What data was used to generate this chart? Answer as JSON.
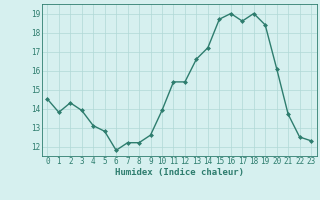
{
  "xlabel": "Humidex (Indice chaleur)",
  "ylabel": "",
  "x": [
    0,
    1,
    2,
    3,
    4,
    5,
    6,
    7,
    8,
    9,
    10,
    11,
    12,
    13,
    14,
    15,
    16,
    17,
    18,
    19,
    20,
    21,
    22,
    23
  ],
  "y": [
    14.5,
    13.8,
    14.3,
    13.9,
    13.1,
    12.8,
    11.8,
    12.2,
    12.2,
    12.6,
    13.9,
    15.4,
    15.4,
    16.6,
    17.2,
    18.7,
    19.0,
    18.6,
    19.0,
    18.4,
    16.1,
    13.7,
    12.5,
    12.3
  ],
  "line_color": "#2e7d6e",
  "marker": "D",
  "marker_size": 2.0,
  "linewidth": 1.0,
  "bg_color": "#d6f0ef",
  "grid_color": "#b0d8d6",
  "tick_color": "#2e7d6e",
  "label_color": "#2e7d6e",
  "ylim": [
    11.5,
    19.5
  ],
  "yticks": [
    12,
    13,
    14,
    15,
    16,
    17,
    18,
    19
  ],
  "xlim": [
    -0.5,
    23.5
  ],
  "xticks": [
    0,
    1,
    2,
    3,
    4,
    5,
    6,
    7,
    8,
    9,
    10,
    11,
    12,
    13,
    14,
    15,
    16,
    17,
    18,
    19,
    20,
    21,
    22,
    23
  ],
  "tick_fontsize": 5.5,
  "xlabel_fontsize": 6.5
}
